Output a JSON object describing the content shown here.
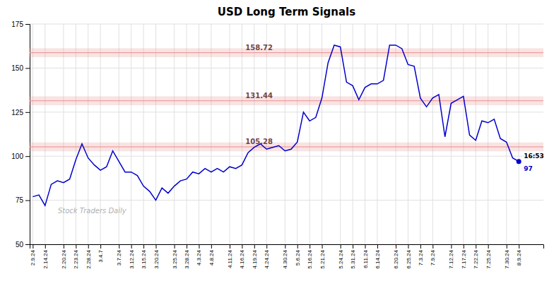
{
  "chart_data": {
    "type": "line",
    "title": "USD Long Term Signals",
    "color": "#0000cc",
    "categories": [
      "2.9.24",
      null,
      "2.14.24",
      null,
      null,
      "2.20.24",
      null,
      "2.23.24",
      null,
      "2.28.24",
      null,
      "3.4.7",
      null,
      null,
      "3.7.24",
      null,
      "3.12.24",
      null,
      "3.15.24",
      null,
      "3.20.24",
      null,
      null,
      "3.25.24",
      null,
      "3.28.24",
      null,
      "4.3.24",
      null,
      "4.8.24",
      null,
      null,
      "4.11.24",
      null,
      "4.16.24",
      null,
      "4.19.24",
      null,
      "4.24.24",
      null,
      null,
      "4.30.24",
      null,
      "5.6.24",
      null,
      "5.16.24",
      null,
      "5.21.24",
      null,
      null,
      "5.24.24",
      null,
      "5.31.24",
      null,
      "6.11.24",
      null,
      "6.14.24",
      null,
      null,
      "6.20.24",
      null,
      "6.25.24",
      null,
      "7.3.24",
      null,
      "7.9.24",
      null,
      null,
      "7.12.24",
      null,
      "7.17.24",
      null,
      "7.22.24",
      null,
      "7.25.24",
      null,
      null,
      "7.30.24",
      null,
      "8.9.24"
    ],
    "values": [
      77,
      78,
      72,
      84,
      86,
      85,
      87,
      98,
      107,
      99,
      95,
      92,
      94,
      103,
      97,
      91,
      91,
      89,
      83,
      80,
      75,
      82,
      79,
      83,
      86,
      87,
      91,
      90,
      93,
      91,
      93,
      91,
      94,
      93,
      95,
      102,
      105,
      107,
      104,
      105,
      106,
      103,
      104,
      108,
      125,
      120,
      122,
      133,
      153,
      163,
      162,
      142,
      140,
      132,
      139,
      141,
      141,
      143,
      163,
      163,
      161,
      152,
      151,
      133,
      128,
      133,
      135,
      111,
      130,
      132,
      134,
      112,
      109,
      120,
      119,
      121,
      110,
      108,
      99,
      97
    ],
    "xlim": [
      -0.5,
      83
    ],
    "ylim": [
      50,
      175
    ],
    "yticks": [
      50,
      75,
      100,
      125,
      150,
      175
    ],
    "grid": true,
    "reference_lines": [
      {
        "value": 105.28,
        "label": "105.28",
        "color": "#e89090"
      },
      {
        "value": 131.44,
        "label": "131.44",
        "color": "#e89090"
      },
      {
        "value": 158.72,
        "label": "158.72",
        "color": "#e89090"
      }
    ],
    "band_width": 2.5,
    "annotations": [
      {
        "text": "16:53",
        "x": 79,
        "y": 97
      },
      {
        "text": "Stock Traders Daily"
      }
    ]
  }
}
